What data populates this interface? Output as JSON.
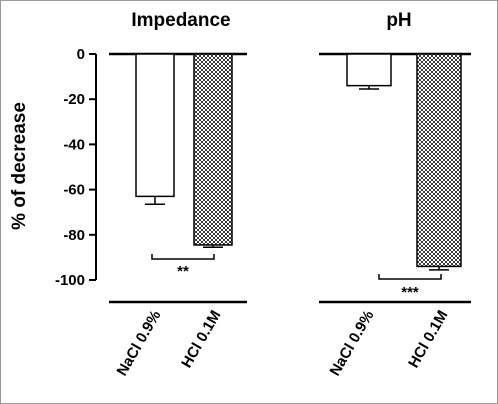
{
  "chart_data": [
    {
      "type": "bar",
      "title": "Impedance",
      "categories": [
        "NaCl 0.9%",
        "HCl 0.1M"
      ],
      "values": [
        -63,
        -84.5
      ],
      "errors": [
        3.5,
        1.0
      ],
      "bar_fills": [
        "white",
        "checkered"
      ],
      "ylabel": "% of decrease",
      "ylim": [
        -100,
        0
      ],
      "yticks": [
        "0",
        "-20",
        "-40",
        "-60",
        "-80",
        "-100"
      ],
      "significance": "**"
    },
    {
      "type": "bar",
      "title": "pH",
      "categories": [
        "NaCl 0.9%",
        "HCl 0.1M"
      ],
      "values": [
        -14,
        -94
      ],
      "errors": [
        1.5,
        1.5
      ],
      "bar_fills": [
        "white",
        "checkered"
      ],
      "ylim": [
        -100,
        0
      ],
      "significance": "***"
    }
  ],
  "colors": {
    "bar_stroke": "#000000",
    "pattern_dark": "#3a3a3a",
    "pattern_light": "#ffffff",
    "border": "#9a9a9a"
  }
}
